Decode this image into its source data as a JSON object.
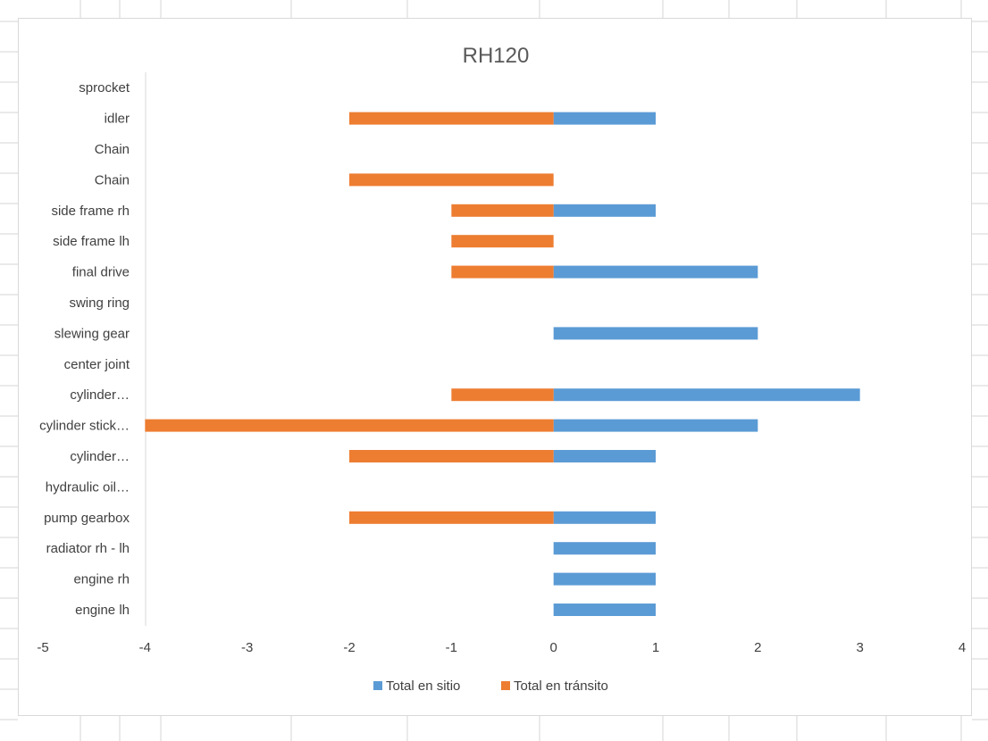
{
  "chart_data": {
    "type": "bar",
    "orientation": "horizontal",
    "title": "RH120",
    "categories": [
      "sprocket",
      "idler",
      "Chain",
      "Chain",
      "side frame rh",
      "side frame lh",
      "final drive",
      "swing ring",
      "slewing gear",
      "center joint",
      "cylinder…",
      "cylinder stick…",
      "cylinder…",
      "hydraulic oil…",
      "pump gearbox",
      "radiator rh - lh",
      "engine rh",
      "engine lh"
    ],
    "series": [
      {
        "name": "Total en sitio",
        "color": "#5b9bd5",
        "values": [
          0,
          1,
          0,
          0,
          1,
          0,
          2,
          0,
          2,
          0,
          3,
          2,
          1,
          0,
          1,
          1,
          1,
          1
        ]
      },
      {
        "name": "Total en tránsito",
        "color": "#ed7d31",
        "values": [
          0,
          -2,
          0,
          -2,
          -1,
          -1,
          -1,
          0,
          0,
          0,
          -1,
          -4,
          -2,
          0,
          -2,
          0,
          0,
          0
        ]
      }
    ],
    "xlim": [
      -5,
      4
    ],
    "xticks": [
      -5,
      -4,
      -3,
      -2,
      -1,
      0,
      1,
      2,
      3,
      4
    ],
    "grid": false,
    "legend_position": "bottom",
    "xlabel": "",
    "ylabel": ""
  }
}
